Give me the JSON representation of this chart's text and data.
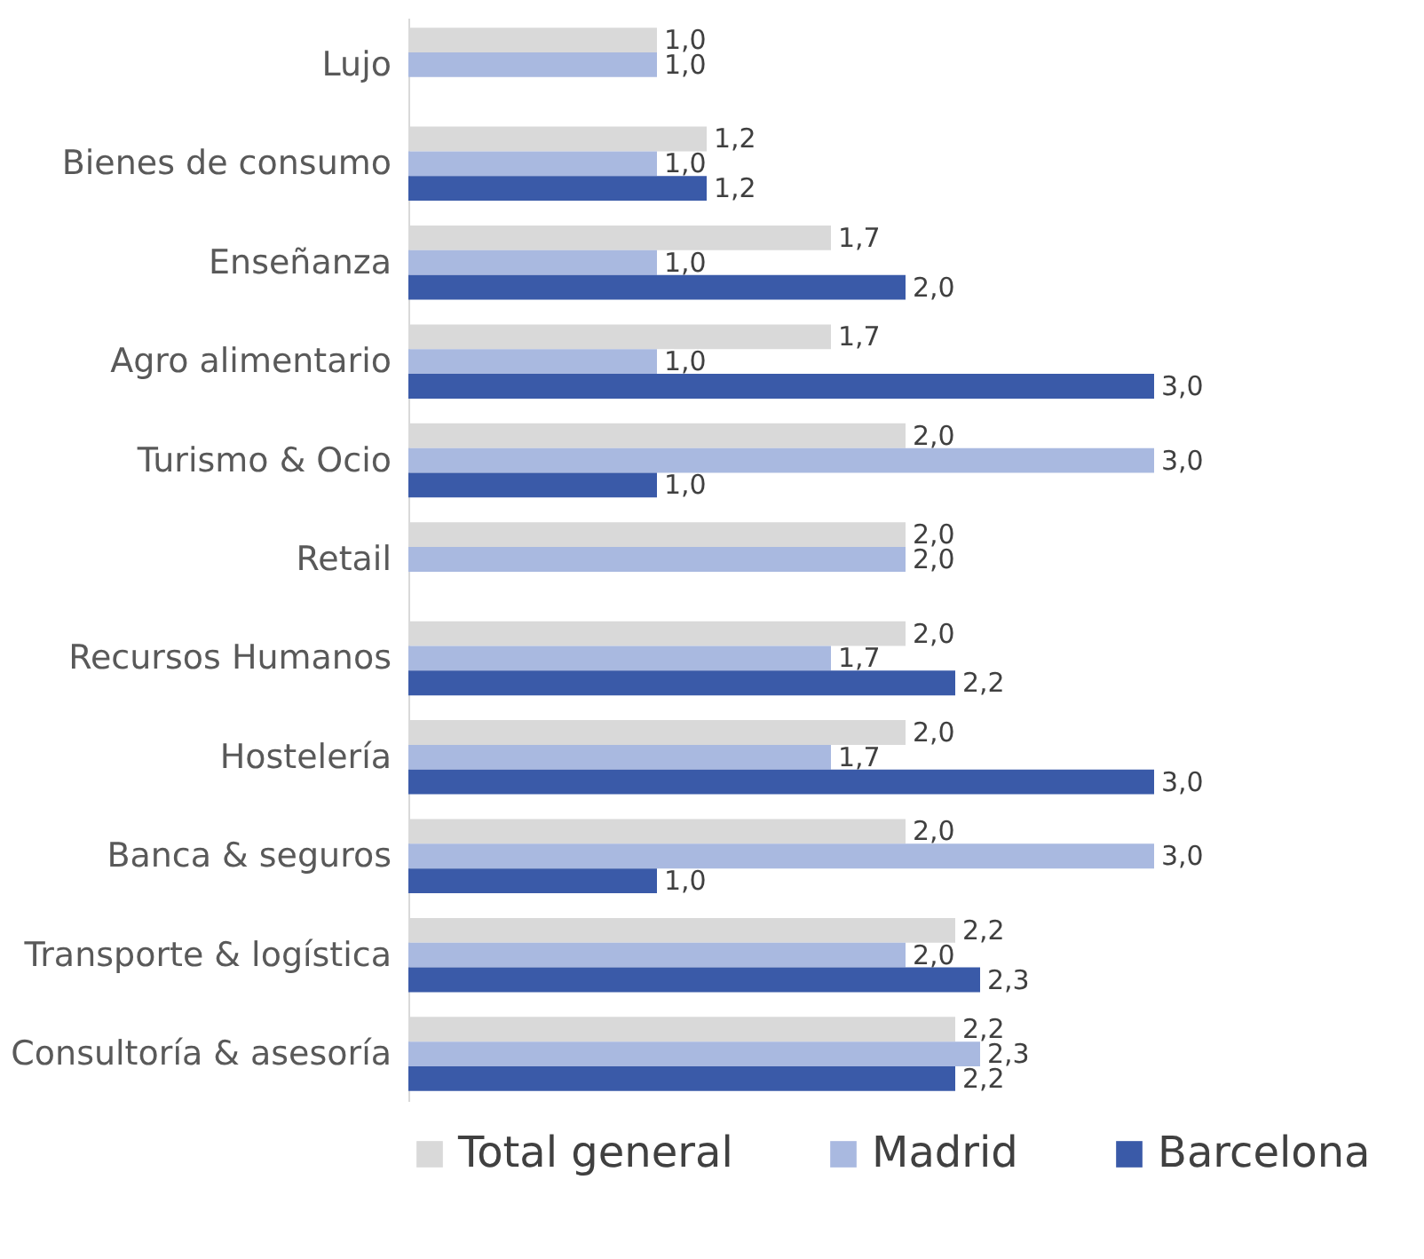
{
  "chart_data": {
    "type": "bar",
    "orientation": "horizontal",
    "legend": "bottom",
    "grid": false,
    "categories": [
      "Lujo",
      "Bienes de consumo",
      "Enseñanza",
      "Agro alimentario",
      "Turismo & Ocio",
      "Retail",
      "Recursos Humanos",
      "Hostelería",
      "Banca & seguros",
      "Transporte & logística",
      "Consultoría & asesoría"
    ],
    "series": [
      {
        "name": "Total general",
        "color": "#d9d9d9",
        "values": [
          1.0,
          1.2,
          1.7,
          1.7,
          2.0,
          2.0,
          2.0,
          2.0,
          2.0,
          2.2,
          2.2
        ],
        "value_labels": [
          "1,0",
          "1,2",
          "1,7",
          "1,7",
          "2,0",
          "2,0",
          "2,0",
          "2,0",
          "2,0",
          "2,2",
          "2,2"
        ]
      },
      {
        "name": "Madrid",
        "color": "#a9b9e0",
        "values": [
          1.0,
          1.0,
          1.0,
          1.0,
          3.0,
          2.0,
          1.7,
          1.7,
          3.0,
          2.0,
          2.3
        ],
        "value_labels": [
          "1,0",
          "1,0",
          "1,0",
          "1,0",
          "3,0",
          "2,0",
          "1,7",
          "1,7",
          "3,0",
          "2,0",
          "2,3"
        ]
      },
      {
        "name": "Barcelona",
        "color": "#3a5aa8",
        "values": [
          null,
          1.2,
          2.0,
          3.0,
          1.0,
          null,
          2.2,
          3.0,
          1.0,
          2.3,
          2.2
        ],
        "value_labels": [
          null,
          "1,2",
          "2,0",
          "3,0",
          "1,0",
          null,
          "2,2",
          "3,0",
          "1,0",
          "2,3",
          "2,2"
        ]
      }
    ]
  }
}
